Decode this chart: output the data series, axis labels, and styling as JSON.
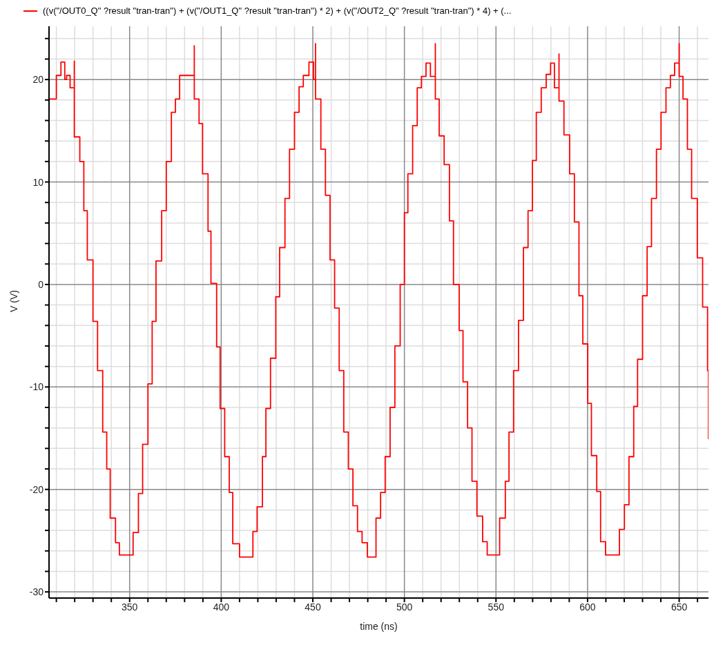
{
  "chart_data": {
    "type": "step",
    "xlabel": "time (ns)",
    "ylabel": "V (V)",
    "legend": "top left",
    "grid": true,
    "xlim": [
      306,
      666
    ],
    "ylim": [
      -30.6,
      25.2
    ],
    "xticks": [
      {
        "value": 310,
        "label": null
      },
      {
        "value": 320,
        "label": null
      },
      {
        "value": 330,
        "label": null
      },
      {
        "value": 340,
        "label": null
      },
      350,
      {
        "value": 360,
        "label": null
      },
      {
        "value": 370,
        "label": null
      },
      {
        "value": 380,
        "label": null
      },
      {
        "value": 390,
        "label": null
      },
      400,
      {
        "value": 410,
        "label": null
      },
      {
        "value": 420,
        "label": null
      },
      {
        "value": 430,
        "label": null
      },
      {
        "value": 440,
        "label": null
      },
      450,
      {
        "value": 460,
        "label": null
      },
      {
        "value": 470,
        "label": null
      },
      {
        "value": 480,
        "label": null
      },
      {
        "value": 490,
        "label": null
      },
      500,
      {
        "value": 510,
        "label": null
      },
      {
        "value": 520,
        "label": null
      },
      {
        "value": 530,
        "label": null
      },
      {
        "value": 540,
        "label": null
      },
      550,
      {
        "value": 560,
        "label": null
      },
      {
        "value": 570,
        "label": null
      },
      {
        "value": 580,
        "label": null
      },
      {
        "value": 590,
        "label": null
      },
      600,
      {
        "value": 610,
        "label": null
      },
      {
        "value": 620,
        "label": null
      },
      {
        "value": 630,
        "label": null
      },
      {
        "value": 640,
        "label": null
      },
      650,
      {
        "value": 660,
        "label": null
      }
    ],
    "yticks": [
      -30,
      {
        "value": -28,
        "label": null
      },
      {
        "value": -26,
        "label": null
      },
      {
        "value": -24,
        "label": null
      },
      {
        "value": -22,
        "label": null
      },
      -20,
      {
        "value": -18,
        "label": null
      },
      {
        "value": -16,
        "label": null
      },
      {
        "value": -14,
        "label": null
      },
      {
        "value": -12,
        "label": null
      },
      -10,
      {
        "value": -8,
        "label": null
      },
      {
        "value": -6,
        "label": null
      },
      {
        "value": -4,
        "label": null
      },
      {
        "value": -2,
        "label": null
      },
      0,
      {
        "value": 2,
        "label": null
      },
      {
        "value": 4,
        "label": null
      },
      {
        "value": 6,
        "label": null
      },
      {
        "value": 8,
        "label": null
      },
      10,
      {
        "value": 12,
        "label": null
      },
      {
        "value": 14,
        "label": null
      },
      {
        "value": 16,
        "label": null
      },
      {
        "value": 18,
        "label": null
      },
      20,
      {
        "value": 22,
        "label": null
      },
      {
        "value": 24,
        "label": null
      }
    ],
    "series": [
      {
        "name": "((v(\"/OUT0_Q\" ?result \"tran-tran\") + (v(\"/OUT1_Q\" ?result \"tran-tran\") * 2) + (v(\"/OUT2_Q\" ?result \"tran-tran\") * 4) + (...",
        "color": "#ff0000",
        "x": [
          306.3,
          310,
          312.5,
          314.6,
          315.6,
          317.5,
          319.8,
          319.8,
          322.8,
          325,
          326.9,
          330,
          332.5,
          335.3,
          337.5,
          339.4,
          342.3,
          344.4,
          351.9,
          354.8,
          357.1,
          360,
          362.3,
          364.4,
          367.5,
          370,
          372.8,
          375,
          377.3,
          385.3,
          385.3,
          387.9,
          389.8,
          392.8,
          394.4,
          397.5,
          399.4,
          401.9,
          404.4,
          406.3,
          410,
          417.3,
          419.6,
          422.5,
          424.4,
          426.9,
          429.8,
          431.9,
          434.8,
          437.3,
          440,
          442.5,
          444.8,
          447.9,
          450.4,
          451.5,
          451.5,
          454.4,
          456.9,
          459.4,
          461.9,
          464.4,
          466.9,
          469.4,
          471.9,
          474.4,
          476.9,
          479.8,
          484.5,
          487,
          489.5,
          492.2,
          494.8,
          497.7,
          500,
          501.9,
          504.5,
          507,
          509.3,
          511.8,
          514.2,
          516.9,
          516.9,
          519,
          521.7,
          524.6,
          526.8,
          529.9,
          532,
          534.5,
          536.9,
          539.6,
          542.7,
          545.2,
          552,
          555.1,
          557.1,
          559.6,
          562.3,
          565,
          567.5,
          569.9,
          572,
          574.7,
          577.4,
          579.8,
          581.9,
          584.4,
          584.4,
          587.1,
          590.2,
          592.8,
          595.3,
          597.4,
          600.1,
          602.1,
          605,
          607.1,
          609.8,
          617.4,
          620.1,
          622.6,
          625.2,
          627.3,
          630,
          632.5,
          634.9,
          637.6,
          640.1,
          642.8,
          645.2,
          647.5,
          650,
          650,
          652.1,
          654.5,
          656.8,
          659.9,
          662.8,
          665.5,
          666
        ],
        "values": [
          18.1,
          20.4,
          21.7,
          20,
          20.4,
          19.2,
          21.8,
          14.4,
          12,
          7.2,
          2.4,
          -3.6,
          -8.4,
          -14.4,
          -18,
          -22.8,
          -25.2,
          -26.4,
          -24.2,
          -20.4,
          -15.6,
          -9.7,
          -3.6,
          2.3,
          7.2,
          12,
          16.8,
          18.1,
          20.4,
          23.3,
          18.1,
          15.7,
          10.8,
          5.2,
          0.1,
          -6.1,
          -12.1,
          -16.8,
          -20.3,
          -25.3,
          -26.6,
          -24.1,
          -21.7,
          -16.8,
          -12.1,
          -7.2,
          -1.2,
          3.6,
          8.4,
          13.2,
          16.8,
          19.3,
          20.4,
          21.7,
          20,
          23.5,
          18.1,
          13.2,
          8.7,
          2.4,
          -2.3,
          -8.4,
          -14.4,
          -18,
          -21.6,
          -24.1,
          -25.2,
          -26.6,
          -22.8,
          -20.3,
          -16.8,
          -12,
          -6,
          0,
          7,
          10.8,
          15.5,
          19.2,
          20.3,
          21.6,
          20.3,
          23.5,
          18.1,
          14.5,
          11.7,
          6.2,
          0,
          -4.5,
          -9.5,
          -14,
          -19.2,
          -22.6,
          -25.1,
          -26.4,
          -22.8,
          -19.2,
          -14.4,
          -8.4,
          -3.5,
          3.6,
          7.2,
          12.1,
          16.8,
          19.2,
          20.5,
          21.6,
          19.2,
          22.5,
          17.9,
          14.6,
          10.8,
          6.1,
          -1.1,
          -5.8,
          -11.6,
          -16.7,
          -20.2,
          -25.1,
          -26.4,
          -23.9,
          -21.5,
          -16.8,
          -11.9,
          -7.3,
          -1.1,
          3.7,
          8.4,
          13.2,
          16.8,
          19.2,
          20.4,
          21.6,
          23.5,
          20.3,
          18.1,
          13.2,
          8.4,
          2.6,
          -2.2,
          -8.4,
          -15.1
        ]
      }
    ]
  }
}
